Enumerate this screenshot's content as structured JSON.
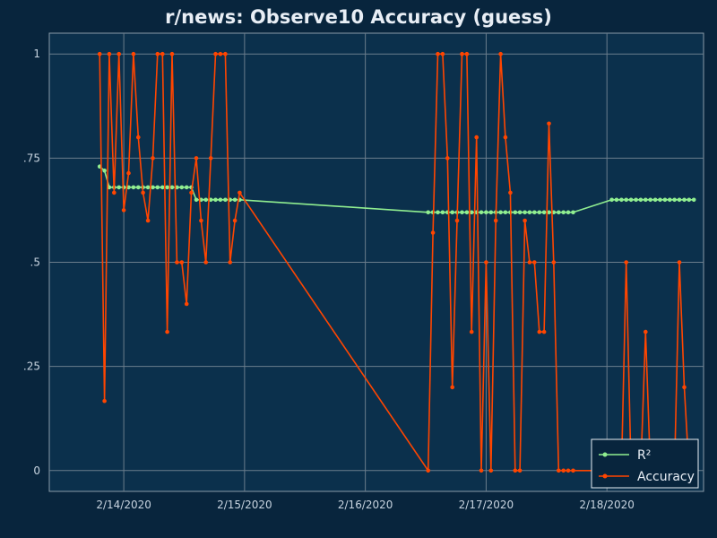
{
  "chart_data": {
    "type": "line",
    "title": "r/news: Observe10 Accuracy (guess)",
    "xlabel": "",
    "ylabel": "",
    "x_ticks": [
      "2/14/2020",
      "2/15/2020",
      "2/16/2020",
      "2/17/2020",
      "2/18/2020"
    ],
    "y_ticks": [
      "0",
      ".25",
      ".5",
      ".75",
      "1"
    ],
    "xlim": [
      "2/13/2020 09:12",
      "2/18/2020 19:12"
    ],
    "ylim": [
      -0.05,
      1.05
    ],
    "grid": true,
    "legend_position": "bottom-right",
    "series": [
      {
        "name": "R²",
        "color": "#90ee90",
        "x": [
          "2/13/2020 19:12",
          "2/13/2020 20:10",
          "2/13/2020 21:07",
          "2/13/2020 22:05",
          "2/13/2020 23:02",
          "2/14/2020 00:00",
          "2/14/2020 00:58",
          "2/14/2020 01:55",
          "2/14/2020 02:53",
          "2/14/2020 03:50",
          "2/14/2020 04:48",
          "2/14/2020 05:46",
          "2/14/2020 06:43",
          "2/14/2020 07:41",
          "2/14/2020 08:38",
          "2/14/2020 09:36",
          "2/14/2020 10:34",
          "2/14/2020 11:31",
          "2/14/2020 12:29",
          "2/14/2020 13:26",
          "2/14/2020 14:24",
          "2/14/2020 15:22",
          "2/14/2020 16:19",
          "2/14/2020 17:17",
          "2/14/2020 18:14",
          "2/14/2020 19:12",
          "2/14/2020 20:10",
          "2/14/2020 21:07",
          "2/14/2020 22:05",
          "2/14/2020 23:02",
          "2/16/2020 12:29",
          "2/16/2020 13:26",
          "2/16/2020 14:24",
          "2/16/2020 15:22",
          "2/16/2020 16:19",
          "2/16/2020 17:17",
          "2/16/2020 18:14",
          "2/16/2020 19:12",
          "2/16/2020 20:10",
          "2/16/2020 21:07",
          "2/16/2020 22:05",
          "2/16/2020 23:02",
          "2/17/2020 00:00",
          "2/17/2020 00:58",
          "2/17/2020 01:55",
          "2/17/2020 02:53",
          "2/17/2020 03:50",
          "2/17/2020 04:48",
          "2/17/2020 05:46",
          "2/17/2020 06:43",
          "2/17/2020 07:41",
          "2/17/2020 08:38",
          "2/17/2020 09:36",
          "2/17/2020 10:34",
          "2/17/2020 11:31",
          "2/17/2020 12:29",
          "2/17/2020 13:26",
          "2/17/2020 14:24",
          "2/17/2020 15:22",
          "2/17/2020 16:19",
          "2/17/2020 17:17",
          "2/18/2020 00:58",
          "2/18/2020 01:55",
          "2/18/2020 02:53",
          "2/18/2020 03:50",
          "2/18/2020 04:48",
          "2/18/2020 05:46",
          "2/18/2020 06:43",
          "2/18/2020 07:41",
          "2/18/2020 08:38",
          "2/18/2020 09:36",
          "2/18/2020 10:34",
          "2/18/2020 11:31",
          "2/18/2020 12:29",
          "2/18/2020 13:26",
          "2/18/2020 14:24",
          "2/18/2020 15:22",
          "2/18/2020 16:19",
          "2/18/2020 17:17"
        ],
        "values": [
          0.73,
          0.72,
          0.68,
          0.68,
          0.68,
          0.68,
          0.68,
          0.68,
          0.68,
          0.68,
          0.68,
          0.68,
          0.68,
          0.68,
          0.68,
          0.68,
          0.68,
          0.68,
          0.68,
          0.68,
          0.65,
          0.65,
          0.65,
          0.65,
          0.65,
          0.65,
          0.65,
          0.65,
          0.65,
          0.65,
          0.62,
          0.62,
          0.62,
          0.62,
          0.62,
          0.62,
          0.62,
          0.62,
          0.62,
          0.62,
          0.62,
          0.62,
          0.62,
          0.62,
          0.62,
          0.62,
          0.62,
          0.62,
          0.62,
          0.62,
          0.62,
          0.62,
          0.62,
          0.62,
          0.62,
          0.62,
          0.62,
          0.62,
          0.62,
          0.62,
          0.62,
          0.65,
          0.65,
          0.65,
          0.65,
          0.65,
          0.65,
          0.65,
          0.65,
          0.65,
          0.65,
          0.65,
          0.65,
          0.65,
          0.65,
          0.65,
          0.65,
          0.65,
          0.65
        ]
      },
      {
        "name": "Accuracy",
        "color": "#ff4500",
        "x": [
          "2/13/2020 19:12",
          "2/13/2020 20:10",
          "2/13/2020 21:07",
          "2/13/2020 22:05",
          "2/13/2020 23:02",
          "2/14/2020 00:00",
          "2/14/2020 00:58",
          "2/14/2020 01:55",
          "2/14/2020 02:53",
          "2/14/2020 03:50",
          "2/14/2020 04:48",
          "2/14/2020 05:46",
          "2/14/2020 06:43",
          "2/14/2020 07:41",
          "2/14/2020 08:38",
          "2/14/2020 09:36",
          "2/14/2020 10:34",
          "2/14/2020 11:31",
          "2/14/2020 12:29",
          "2/14/2020 13:26",
          "2/14/2020 14:24",
          "2/14/2020 15:22",
          "2/14/2020 16:19",
          "2/14/2020 17:17",
          "2/14/2020 18:14",
          "2/14/2020 19:12",
          "2/14/2020 20:10",
          "2/14/2020 21:07",
          "2/14/2020 22:05",
          "2/14/2020 23:02",
          "2/16/2020 12:29",
          "2/16/2020 13:26",
          "2/16/2020 14:24",
          "2/16/2020 15:22",
          "2/16/2020 16:19",
          "2/16/2020 17:17",
          "2/16/2020 18:14",
          "2/16/2020 19:12",
          "2/16/2020 20:10",
          "2/16/2020 21:07",
          "2/16/2020 22:05",
          "2/16/2020 23:02",
          "2/17/2020 00:00",
          "2/17/2020 00:58",
          "2/17/2020 01:55",
          "2/17/2020 02:53",
          "2/17/2020 03:50",
          "2/17/2020 04:48",
          "2/17/2020 05:46",
          "2/17/2020 06:43",
          "2/17/2020 07:41",
          "2/17/2020 08:38",
          "2/17/2020 09:36",
          "2/17/2020 10:34",
          "2/17/2020 11:31",
          "2/17/2020 12:29",
          "2/17/2020 13:26",
          "2/17/2020 14:24",
          "2/17/2020 15:22",
          "2/17/2020 16:19",
          "2/17/2020 17:17",
          "2/18/2020 00:58",
          "2/18/2020 01:55",
          "2/18/2020 02:53",
          "2/18/2020 03:50",
          "2/18/2020 04:48",
          "2/18/2020 05:46",
          "2/18/2020 06:43",
          "2/18/2020 07:41",
          "2/18/2020 08:38",
          "2/18/2020 09:36",
          "2/18/2020 10:34",
          "2/18/2020 11:31",
          "2/18/2020 12:29",
          "2/18/2020 13:26",
          "2/18/2020 14:24",
          "2/18/2020 15:22",
          "2/18/2020 16:19",
          "2/18/2020 17:17"
        ],
        "values": [
          1,
          0.167,
          1,
          0.667,
          1,
          0.625,
          0.714,
          1,
          0.8,
          0.667,
          0.6,
          0.75,
          1,
          1,
          0.333,
          1,
          0.5,
          0.5,
          0.4,
          0.667,
          0.75,
          0.6,
          0.5,
          0.75,
          1,
          1,
          1,
          0.5,
          0.6,
          0.667,
          0,
          0.571,
          1,
          1,
          0.75,
          0.2,
          0.6,
          1,
          1,
          0.333,
          0.8,
          0,
          0.5,
          0,
          0.6,
          1,
          0.8,
          0.667,
          0,
          0,
          0.6,
          0.5,
          0.5,
          0.333,
          0.333,
          0.833,
          0.5,
          0,
          0,
          0,
          0,
          0,
          0,
          0,
          0.5,
          0,
          0,
          0,
          0.333,
          0,
          0,
          0,
          0,
          0,
          0,
          0.5,
          0.2,
          0,
          0
        ]
      }
    ]
  }
}
